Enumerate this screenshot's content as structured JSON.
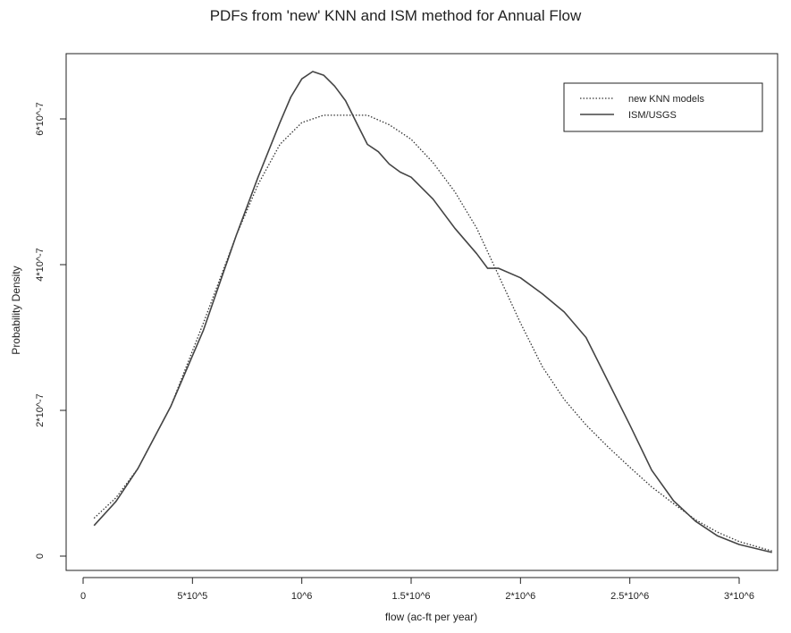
{
  "chart_data": {
    "type": "line",
    "title": "PDFs from 'new' KNN and ISM method for Annual Flow",
    "xlabel": "flow (ac-ft per year)",
    "ylabel": "Probability Density",
    "xlim": [
      0,
      3200000
    ],
    "ylim": [
      -2e-08,
      6.8e-07
    ],
    "x_ticks": [
      {
        "value": 0,
        "label": "0"
      },
      {
        "value": 500000,
        "label": "5*10^5"
      },
      {
        "value": 1000000,
        "label": "10^6"
      },
      {
        "value": 1500000,
        "label": "1.5*10^6"
      },
      {
        "value": 2000000,
        "label": "2*10^6"
      },
      {
        "value": 2500000,
        "label": "2.5*10^6"
      },
      {
        "value": 3000000,
        "label": "3*10^6"
      }
    ],
    "y_ticks": [
      {
        "value": 0,
        "label": "0"
      },
      {
        "value": 2e-07,
        "label": "2*10^-7"
      },
      {
        "value": 4e-07,
        "label": "4*10^-7"
      },
      {
        "value": 6e-07,
        "label": "6*10^-7"
      }
    ],
    "legend": {
      "position": "top-right"
    },
    "series": [
      {
        "name": "new KNN models",
        "style": "dotted",
        "color": "#333333",
        "x": [
          50000,
          150000,
          250000,
          400000,
          550000,
          700000,
          800000,
          900000,
          1000000,
          1050000,
          1100000,
          1200000,
          1300000,
          1400000,
          1500000,
          1600000,
          1700000,
          1800000,
          1900000,
          2000000,
          2100000,
          2200000,
          2300000,
          2400000,
          2500000,
          2600000,
          2700000,
          2800000,
          2900000,
          3000000,
          3150000
        ],
        "y": [
          5.2e-08,
          8e-08,
          1.2e-07,
          2.05e-07,
          3.2e-07,
          4.4e-07,
          5.1e-07,
          5.65e-07,
          5.95e-07,
          6e-07,
          6.05e-07,
          6.05e-07,
          6.05e-07,
          5.92e-07,
          5.72e-07,
          5.4e-07,
          5e-07,
          4.5e-07,
          3.85e-07,
          3.2e-07,
          2.6e-07,
          2.15e-07,
          1.8e-07,
          1.5e-07,
          1.22e-07,
          9.5e-08,
          7.2e-08,
          5e-08,
          3.3e-08,
          2e-08,
          7e-09
        ]
      },
      {
        "name": "ISM/USGS",
        "style": "solid",
        "color": "#444444",
        "x": [
          50000,
          150000,
          250000,
          400000,
          550000,
          700000,
          800000,
          900000,
          950000,
          1000000,
          1050000,
          1100000,
          1150000,
          1200000,
          1250000,
          1300000,
          1350000,
          1400000,
          1450000,
          1500000,
          1600000,
          1700000,
          1800000,
          1850000,
          1900000,
          2000000,
          2100000,
          2200000,
          2300000,
          2400000,
          2500000,
          2600000,
          2700000,
          2800000,
          2900000,
          3000000,
          3150000
        ],
        "y": [
          4.2e-08,
          7.5e-08,
          1.2e-07,
          2.05e-07,
          3.1e-07,
          4.4e-07,
          5.2e-07,
          5.95e-07,
          6.3e-07,
          6.55e-07,
          6.65e-07,
          6.6e-07,
          6.45e-07,
          6.25e-07,
          5.95e-07,
          5.65e-07,
          5.55e-07,
          5.38e-07,
          5.27e-07,
          5.2e-07,
          4.9e-07,
          4.5e-07,
          4.15e-07,
          3.95e-07,
          3.95e-07,
          3.82e-07,
          3.6e-07,
          3.35e-07,
          3e-07,
          2.4e-07,
          1.8e-07,
          1.18e-07,
          7.6e-08,
          4.8e-08,
          2.8e-08,
          1.6e-08,
          5e-09
        ]
      }
    ]
  }
}
